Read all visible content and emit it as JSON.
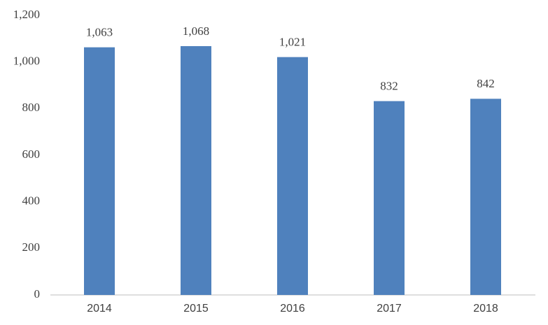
{
  "chart_data": {
    "type": "bar",
    "categories": [
      "2014",
      "2015",
      "2016",
      "2017",
      "2018"
    ],
    "values": [
      1063,
      1068,
      1021,
      832,
      842
    ],
    "value_labels": [
      "1,063",
      "1,068",
      "1,021",
      "832",
      "842"
    ],
    "color": "#4f81bd",
    "ylim": [
      0,
      1200
    ],
    "yticks": [
      0,
      200,
      400,
      600,
      800,
      {
        "value": 1000,
        "label": "1,000"
      },
      {
        "value": 1200,
        "label": "1,200"
      }
    ],
    "grid": false
  }
}
